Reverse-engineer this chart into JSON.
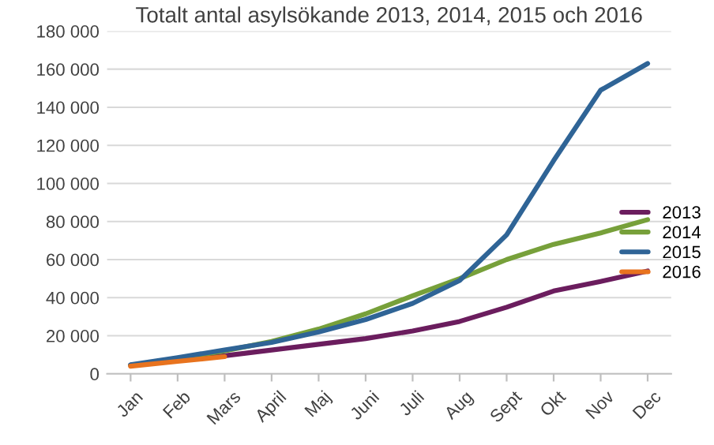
{
  "chart_data": {
    "type": "line",
    "title": "Totalt antal asylsökande 2013, 2014, 2015 och 2016",
    "categories": [
      "Jan",
      "Feb",
      "Mars",
      "April",
      "Maj",
      "Juni",
      "Juli",
      "Aug",
      "Sept",
      "Okt",
      "Nov",
      "Dec"
    ],
    "series": [
      {
        "name": "2013",
        "color": "#6b1d5e",
        "values": [
          4500,
          7000,
          9500,
          12500,
          15500,
          18500,
          22500,
          27500,
          35000,
          43500,
          48500,
          54000
        ]
      },
      {
        "name": "2014",
        "color": "#77a03a",
        "values": [
          4500,
          8000,
          12000,
          17000,
          23500,
          31500,
          41000,
          50000,
          60000,
          68000,
          74000,
          81000
        ]
      },
      {
        "name": "2015",
        "color": "#2f6496",
        "values": [
          4800,
          8500,
          12500,
          16500,
          22000,
          28500,
          37000,
          49000,
          73000,
          112000,
          149000,
          163000
        ]
      },
      {
        "name": "2016",
        "color": "#e8731e",
        "values": [
          4000,
          6500,
          9000,
          null,
          null,
          null,
          null,
          null,
          null,
          null,
          null,
          null
        ]
      }
    ],
    "ylim": [
      0,
      180000
    ],
    "yticks": [
      {
        "value": 0,
        "label": "0"
      },
      {
        "value": 20000,
        "label": "20 000"
      },
      {
        "value": 40000,
        "label": "40 000"
      },
      {
        "value": 60000,
        "label": "60 000"
      },
      {
        "value": 80000,
        "label": "80 000"
      },
      {
        "value": 100000,
        "label": "100 000"
      },
      {
        "value": 120000,
        "label": "120 000"
      },
      {
        "value": 140000,
        "label": "140 000"
      },
      {
        "value": 160000,
        "label": "160 000"
      },
      {
        "value": 180000,
        "label": "180 000"
      }
    ],
    "grid": "y",
    "legend": "right",
    "line_style": "solid"
  }
}
